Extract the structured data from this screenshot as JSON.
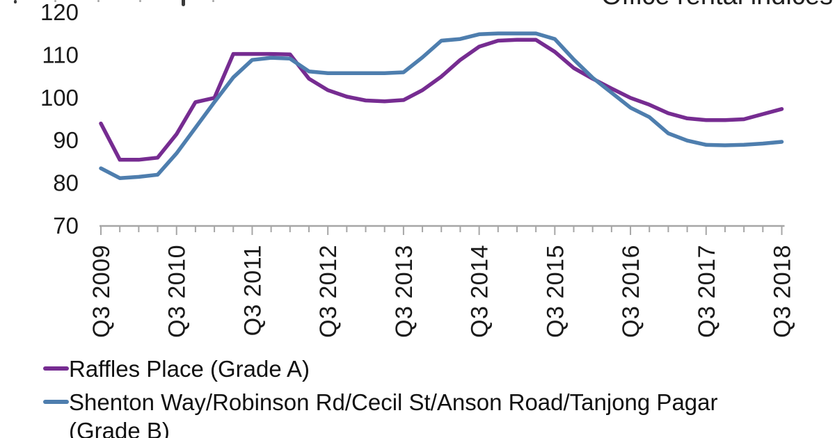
{
  "header": {
    "title": "Office rental indices"
  },
  "chart_data": {
    "type": "line",
    "title": "Office rental indices",
    "n_points": 37,
    "x_labels": [
      "Q3 2009",
      "Q3 2010",
      "Q3 2011",
      "Q3 2012",
      "Q3 2013",
      "Q3 2014",
      "Q3 2015",
      "Q3 2016",
      "Q3 2017",
      "Q3 2018"
    ],
    "x_minor_tick_every": "quarter",
    "y_ticks": [
      70,
      80,
      90,
      100,
      110,
      120
    ],
    "ylim": [
      70,
      125
    ],
    "grid": false,
    "legend_position": "bottom-left",
    "axis_color": "#a6a6a6",
    "series": [
      {
        "name": "Raffles Place (Grade A)",
        "color": "#762C91",
        "values": [
          94,
          85.5,
          85.5,
          86,
          91.5,
          99,
          100,
          110.3,
          110.3,
          110.3,
          110.2,
          104.5,
          101.8,
          100.3,
          99.4,
          99.2,
          99.5,
          101.8,
          105,
          108.9,
          112,
          113.4,
          113.6,
          113.6,
          110.8,
          107,
          104.5,
          102.2,
          100,
          98.4,
          96.4,
          95.2,
          94.8,
          94.8,
          95,
          96.2,
          97.4
        ]
      },
      {
        "name": "Shenton Way/Robinson Rd/Cecil St/Anson Road/Tanjong Pagar (Grade B)",
        "color": "#4E7EAE",
        "values": [
          83.5,
          81.2,
          81.5,
          82,
          87,
          93,
          99,
          104.8,
          108.9,
          109.4,
          109.2,
          106.2,
          105.8,
          105.8,
          105.8,
          105.8,
          106,
          109.5,
          113.4,
          113.8,
          114.9,
          115.1,
          115.1,
          115.1,
          113.8,
          109,
          104.7,
          101.2,
          97.7,
          95.5,
          91.7,
          90,
          89,
          88.9,
          89,
          89.3,
          89.7
        ]
      }
    ]
  },
  "legend": {
    "grade_a_label": "Raffles Place (Grade A)",
    "grade_b_line1": "Shenton Way/Robinson Rd/Cecil St/Anson Road/Tanjong Pagar",
    "grade_b_line2": "(Grade B)"
  }
}
